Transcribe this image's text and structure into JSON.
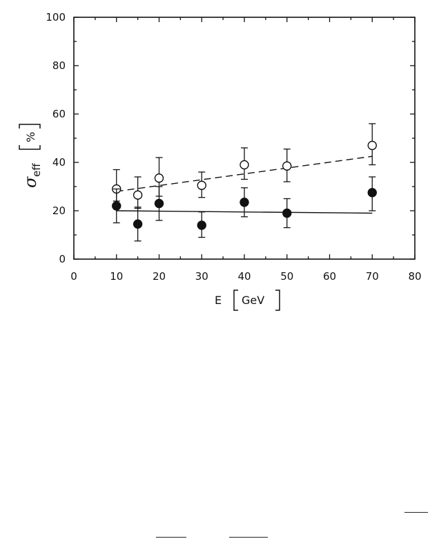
{
  "chart_data": {
    "type": "scatter",
    "xlabel_symbol": "E",
    "xlabel_unit": "GeV",
    "ylabel_symbol": "σ",
    "ylabel_subscript": "eff",
    "ylabel_unit": "%",
    "xlim": [
      0,
      80
    ],
    "ylim": [
      0,
      100
    ],
    "x_ticks": [
      "0",
      "10",
      "20",
      "30",
      "40",
      "50",
      "60",
      "70",
      "80"
    ],
    "y_ticks": [
      "0",
      "20",
      "40",
      "60",
      "80",
      "100"
    ],
    "grid": false,
    "series": [
      {
        "marker": "open-circle",
        "points": [
          {
            "x": 10,
            "y": 29,
            "err_low": 24,
            "err_high": 37
          },
          {
            "x": 15,
            "y": 26.5,
            "err_low": 21,
            "err_high": 34
          },
          {
            "x": 20,
            "y": 33.5,
            "err_low": 26,
            "err_high": 42
          },
          {
            "x": 30,
            "y": 30.5,
            "err_low": 25.5,
            "err_high": 36
          },
          {
            "x": 40,
            "y": 39,
            "err_low": 33,
            "err_high": 46
          },
          {
            "x": 50,
            "y": 38.5,
            "err_low": 32,
            "err_high": 45.5
          },
          {
            "x": 70,
            "y": 47,
            "err_low": 39,
            "err_high": 56
          }
        ],
        "fit_line": {
          "style": "dashed",
          "x": [
            10,
            70
          ],
          "y": [
            28,
            42.5
          ]
        }
      },
      {
        "marker": "filled-circle",
        "points": [
          {
            "x": 10,
            "y": 22,
            "err_low": 15,
            "err_high": 29
          },
          {
            "x": 15,
            "y": 14.5,
            "err_low": 7.5,
            "err_high": 21.5
          },
          {
            "x": 20,
            "y": 23,
            "err_low": 16,
            "err_high": 30
          },
          {
            "x": 30,
            "y": 14,
            "err_low": 9,
            "err_high": 19.5
          },
          {
            "x": 40,
            "y": 23.5,
            "err_low": 17.5,
            "err_high": 29.5
          },
          {
            "x": 50,
            "y": 19,
            "err_low": 13,
            "err_high": 25
          },
          {
            "x": 70,
            "y": 27.5,
            "err_low": 20,
            "err_high": 34
          }
        ],
        "fit_line": {
          "style": "solid",
          "x": [
            10,
            70
          ],
          "y": [
            20,
            19
          ]
        }
      }
    ]
  },
  "colors": {
    "ink": "#111111",
    "background": "#ffffff"
  }
}
